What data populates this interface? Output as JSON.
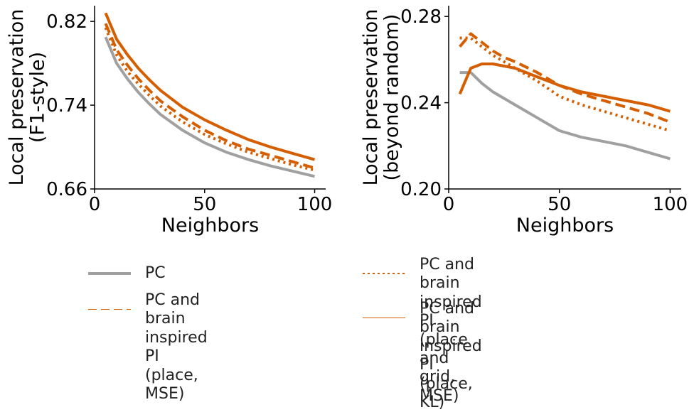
{
  "chart_data": [
    {
      "type": "line",
      "ylabel": "Local preservation\n(F1-style)",
      "xlabel": "Neighbors",
      "xlim": [
        0,
        105
      ],
      "ylim": [
        0.66,
        0.835
      ],
      "xticks": [
        "0",
        "50",
        "100"
      ],
      "xtick_values": [
        0,
        50,
        100
      ],
      "yticks": [
        "0.66",
        "0.74",
        "0.82"
      ],
      "ytick_values": [
        0.66,
        0.74,
        0.82
      ],
      "x": [
        5,
        10,
        15,
        20,
        25,
        30,
        40,
        50,
        60,
        70,
        80,
        90,
        100
      ],
      "series": [
        {
          "name": "PC",
          "values": [
            0.805,
            0.78,
            0.765,
            0.752,
            0.741,
            0.731,
            0.716,
            0.704,
            0.695,
            0.688,
            0.682,
            0.677,
            0.672
          ]
        },
        {
          "name": "PC and brain inspired PI (place, MSE)",
          "values": [
            0.818,
            0.793,
            0.778,
            0.765,
            0.754,
            0.744,
            0.729,
            0.716,
            0.706,
            0.698,
            0.692,
            0.686,
            0.68
          ]
        },
        {
          "name": "PC and brain inspired PI (place and grid, MSE)",
          "values": [
            0.814,
            0.788,
            0.772,
            0.76,
            0.749,
            0.739,
            0.724,
            0.712,
            0.703,
            0.695,
            0.689,
            0.683,
            0.678
          ]
        },
        {
          "name": "PC and brain inspired PI (place, KL)",
          "values": [
            0.828,
            0.803,
            0.788,
            0.775,
            0.764,
            0.754,
            0.738,
            0.726,
            0.716,
            0.707,
            0.7,
            0.694,
            0.688
          ]
        }
      ]
    },
    {
      "type": "line",
      "ylabel": "Local preservation\n(beyond random)",
      "xlabel": "Neighbors",
      "xlim": [
        0,
        105
      ],
      "ylim": [
        0.2,
        0.285
      ],
      "xticks": [
        "0",
        "50",
        "100"
      ],
      "xtick_values": [
        0,
        50,
        100
      ],
      "yticks": [
        "0.20",
        "0.24",
        "0.28"
      ],
      "ytick_values": [
        0.2,
        0.24,
        0.28
      ],
      "x": [
        5,
        10,
        15,
        20,
        25,
        30,
        40,
        50,
        60,
        70,
        80,
        90,
        100
      ],
      "series": [
        {
          "name": "PC",
          "values": [
            0.254,
            0.254,
            0.249,
            0.245,
            0.242,
            0.239,
            0.233,
            0.227,
            0.224,
            0.222,
            0.22,
            0.217,
            0.214
          ]
        },
        {
          "name": "PC and brain inspired PI (place, MSE)",
          "values": [
            0.266,
            0.272,
            0.268,
            0.264,
            0.261,
            0.259,
            0.254,
            0.248,
            0.244,
            0.241,
            0.238,
            0.235,
            0.231
          ]
        },
        {
          "name": "PC and brain inspired PI (place and grid, MSE)",
          "values": [
            0.27,
            0.27,
            0.266,
            0.262,
            0.259,
            0.256,
            0.25,
            0.243,
            0.239,
            0.236,
            0.233,
            0.23,
            0.227
          ]
        },
        {
          "name": "PC and brain inspired PI (place, KL)",
          "values": [
            0.244,
            0.256,
            0.258,
            0.258,
            0.257,
            0.256,
            0.252,
            0.248,
            0.245,
            0.243,
            0.241,
            0.239,
            0.236
          ]
        }
      ]
    }
  ],
  "legend": {
    "items": [
      {
        "label": "PC",
        "color": "#a0a0a0",
        "style": "solid"
      },
      {
        "label": "PC and brain inspired PI\n(place, MSE)",
        "color": "#d55e00",
        "style": "dashed"
      },
      {
        "label": "PC and brain inspired PI\n(place and grid, MSE)",
        "color": "#d55e00",
        "style": "dotted"
      },
      {
        "label": "PC and brain inspired PI\n(place, KL)",
        "color": "#d55e00",
        "style": "solid"
      }
    ]
  },
  "series_styles": [
    {
      "color": "#a0a0a0",
      "dash": ""
    },
    {
      "color": "#d55e00",
      "dash": "dashed"
    },
    {
      "color": "#d55e00",
      "dash": "dotted"
    },
    {
      "color": "#d55e00",
      "dash": ""
    }
  ]
}
